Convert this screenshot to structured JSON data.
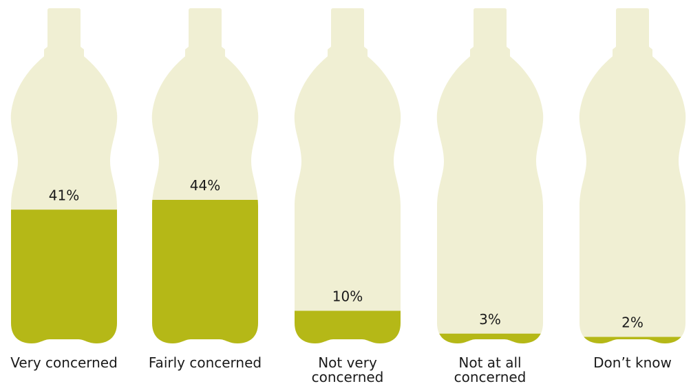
{
  "chart_data": {
    "type": "bar",
    "title": "",
    "xlabel": "",
    "ylabel": "",
    "ylim": [
      0,
      100
    ],
    "unit": "%",
    "categories": [
      [
        "Very concerned"
      ],
      [
        "Fairly concerned"
      ],
      [
        "Not very",
        "concerned"
      ],
      [
        "Not at all",
        "concerned"
      ],
      [
        "Don’t know"
      ]
    ],
    "values": [
      41,
      44,
      10,
      3,
      2
    ],
    "value_labels": [
      "41%",
      "44%",
      "10%",
      "3%",
      "2%"
    ],
    "colors": {
      "bottle": "#f0efd3",
      "fill": "#b5b817",
      "text": "#1a1a1a"
    }
  }
}
